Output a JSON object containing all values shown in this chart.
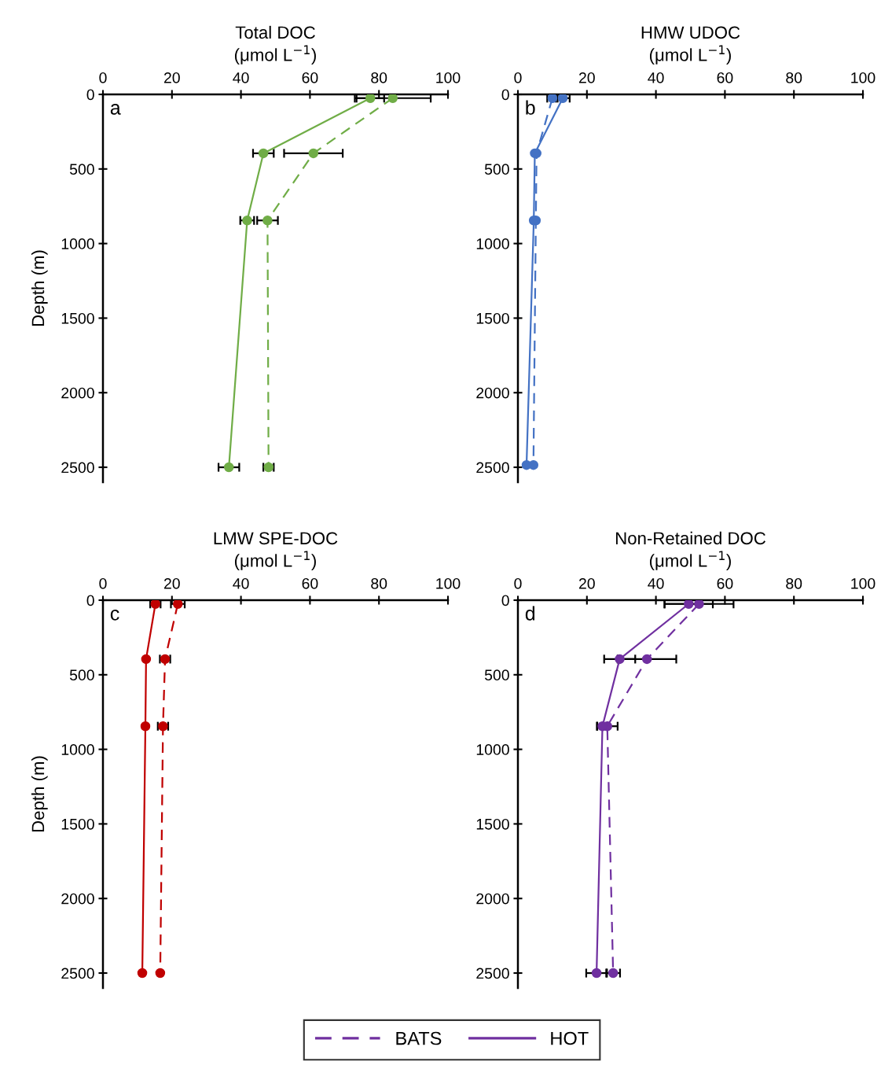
{
  "chart_data": [
    {
      "type": "line",
      "xlabel": "Total DOC\n(μmol L$^{−1}$)",
      "ylabel": "Depth (m)",
      "annotations": [
        "a"
      ],
      "marker": "circle",
      "grid": false,
      "legend": false,
      "xlim": [
        0,
        100
      ],
      "xticks": [
        0,
        20,
        40,
        60,
        80,
        100
      ],
      "ylim": [
        2600,
        0
      ],
      "yticks": [
        0,
        500,
        1000,
        1500,
        2000,
        2500
      ],
      "series": [
        {
          "color": "#70ad47",
          "line_style": "dashed",
          "x": [
            84,
            61,
            47.7,
            48
          ],
          "values": [
            25,
            395,
            845,
            2500
          ],
          "xerrors": [
            11,
            8.5,
            3,
            1.5
          ]
        },
        {
          "color": "#70ad47",
          "line_style": "solid",
          "x": [
            77.5,
            46.5,
            41.8,
            36.5
          ],
          "values": [
            25,
            395,
            845,
            2500
          ],
          "xerrors": [
            4,
            3,
            2,
            3
          ]
        }
      ]
    },
    {
      "type": "line",
      "xlabel": "HMW UDOC\n(μmol L$^{−1}$)",
      "annotations": [
        "b"
      ],
      "marker": "circle",
      "grid": false,
      "legend": false,
      "xlim": [
        0,
        100
      ],
      "xticks": [
        0,
        20,
        40,
        60,
        80,
        100
      ],
      "ylim": [
        2600,
        0
      ],
      "yticks": [
        0,
        500,
        1000,
        1500,
        2000,
        2500
      ],
      "series": [
        {
          "color": "#4472c4",
          "line_style": "dashed",
          "x": [
            10,
            5.4,
            5.2,
            4.5
          ],
          "values": [
            25,
            395,
            845,
            2485
          ],
          "xerrors": [
            1.5,
            null,
            null,
            null
          ]
        },
        {
          "color": "#4472c4",
          "line_style": "solid",
          "x": [
            13,
            4.9,
            4.6,
            2.5
          ],
          "values": [
            25,
            395,
            845,
            2485
          ],
          "xerrors": [
            2,
            null,
            null,
            null
          ]
        }
      ]
    },
    {
      "type": "line",
      "xlabel": "LMW SPE-DOC\n(μmol L$^{−1}$)",
      "ylabel": "Depth (m)",
      "annotations": [
        "c"
      ],
      "marker": "circle",
      "grid": false,
      "legend": false,
      "xlim": [
        0,
        100
      ],
      "xticks": [
        0,
        20,
        40,
        60,
        80,
        100
      ],
      "ylim": [
        2600,
        0
      ],
      "yticks": [
        0,
        500,
        1000,
        1500,
        2000,
        2500
      ],
      "series": [
        {
          "color": "#c00000",
          "line_style": "dashed",
          "x": [
            21.7,
            18,
            17.4,
            16.6
          ],
          "values": [
            25,
            395,
            845,
            2500
          ],
          "xerrors": [
            2,
            1.5,
            1.5,
            null
          ]
        },
        {
          "color": "#c00000",
          "line_style": "solid",
          "x": [
            15.2,
            12.5,
            12.3,
            11.4
          ],
          "values": [
            25,
            395,
            845,
            2500
          ],
          "xerrors": [
            1.5,
            null,
            null,
            null
          ]
        }
      ]
    },
    {
      "type": "line",
      "xlabel": "Non-Retained DOC\n(μmol L$^{−1}$)",
      "annotations": [
        "d"
      ],
      "marker": "circle",
      "grid": false,
      "legend": "bottom",
      "xlim": [
        0,
        100
      ],
      "xticks": [
        0,
        20,
        40,
        60,
        80,
        100
      ],
      "ylim": [
        2600,
        0
      ],
      "yticks": [
        0,
        500,
        1000,
        1500,
        2000,
        2500
      ],
      "series": [
        {
          "name": "BATS",
          "color": "#7030a0",
          "line_style": "dashed",
          "x": [
            52.5,
            37.4,
            25.9,
            27.6
          ],
          "values": [
            25,
            395,
            845,
            2500
          ],
          "xerrors": [
            10,
            8.5,
            3,
            2
          ]
        },
        {
          "name": "HOT",
          "color": "#7030a0",
          "line_style": "solid",
          "x": [
            49.5,
            29.5,
            24.5,
            22.8
          ],
          "values": [
            25,
            395,
            845,
            2500
          ],
          "xerrors": [
            7,
            4.5,
            1.5,
            3
          ]
        }
      ]
    }
  ]
}
